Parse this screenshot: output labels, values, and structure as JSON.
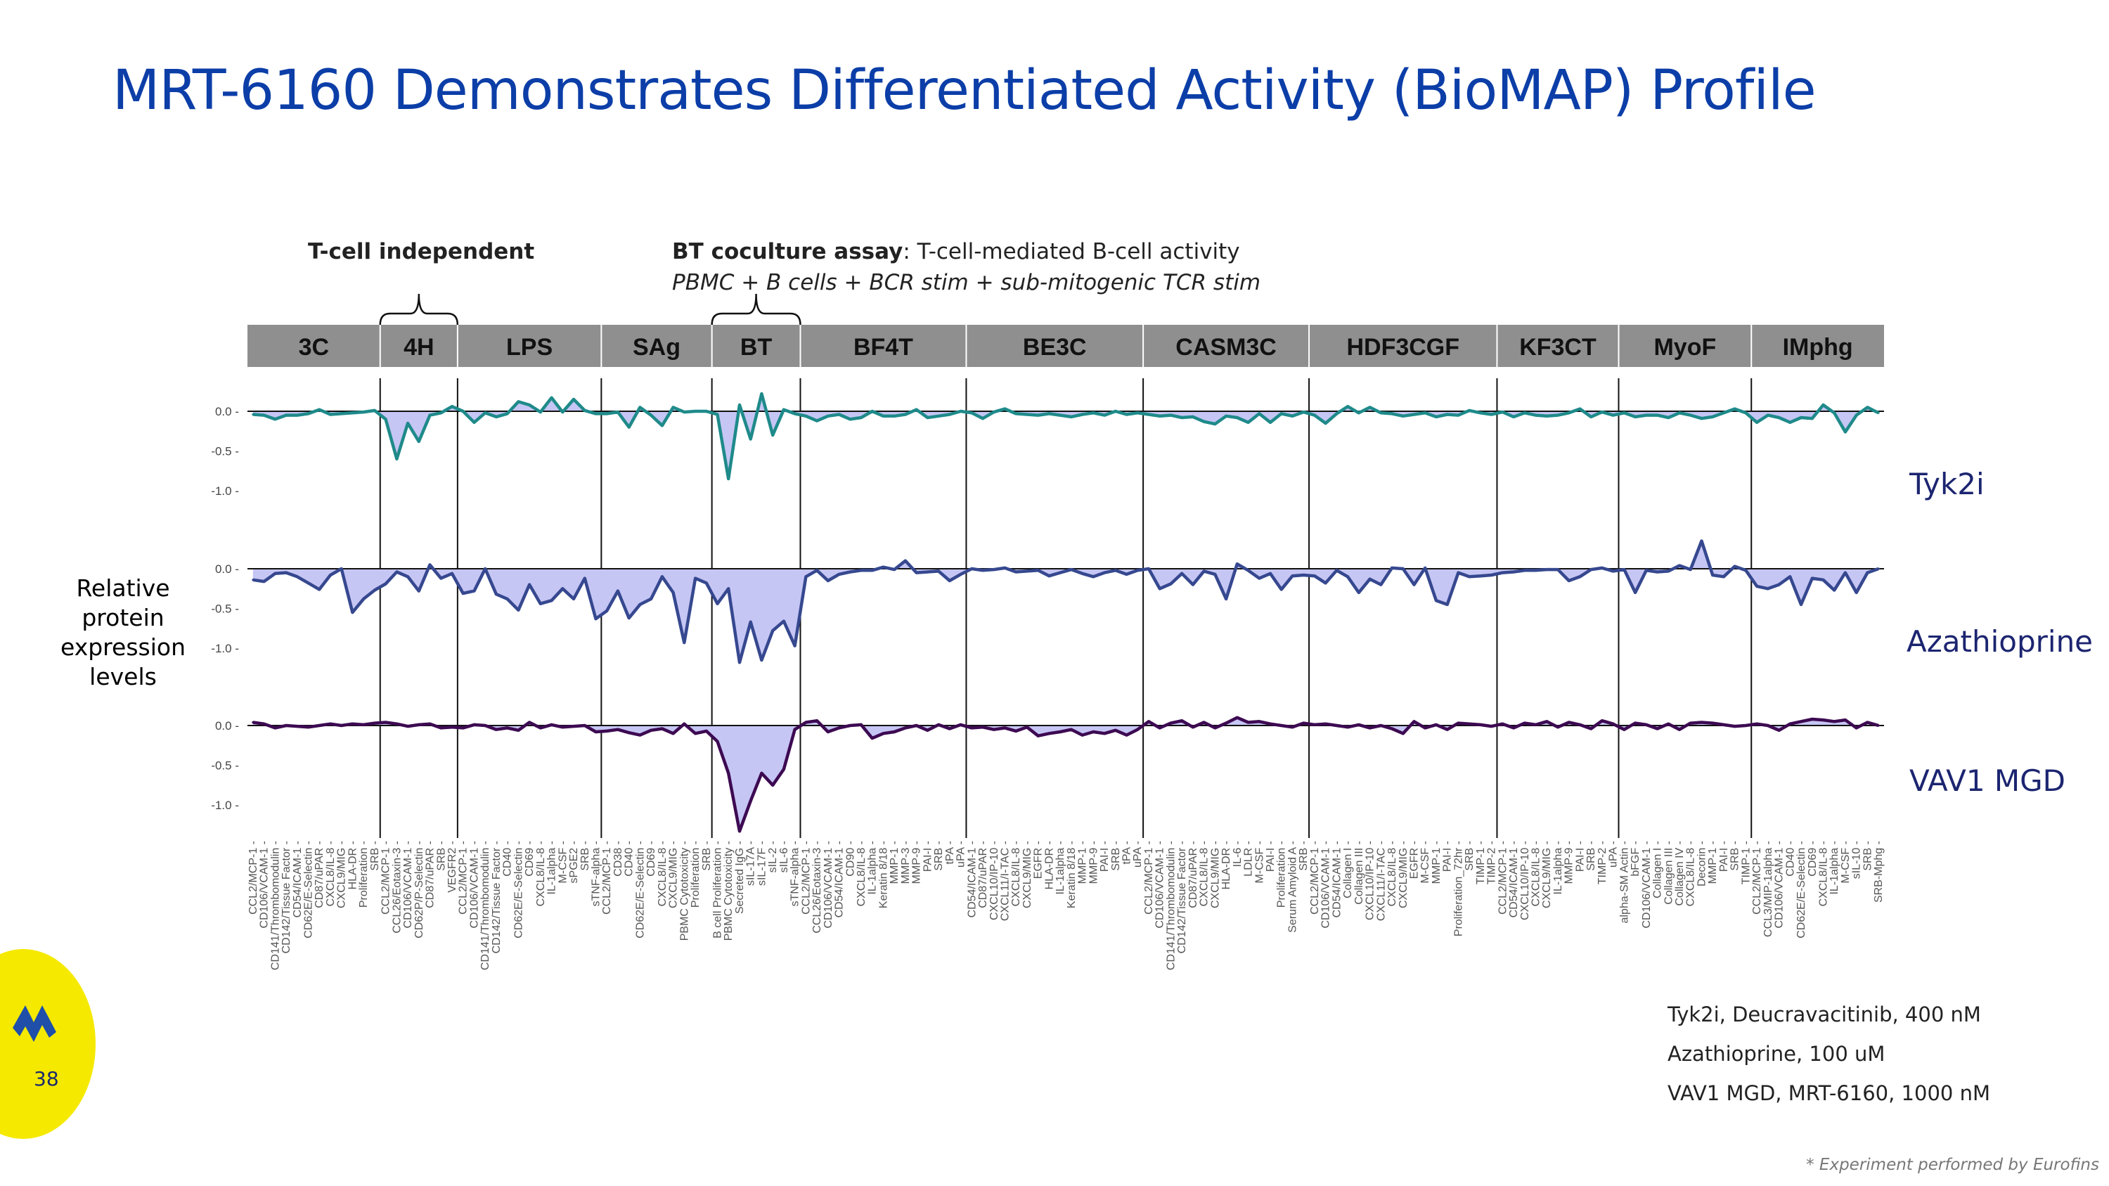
{
  "slide": {
    "title": "MRT-6160 Demonstrates Differentiated Activity (BioMAP) Profile",
    "page_number": "38",
    "footnote": "* Experiment performed by Eurofins",
    "accent_color": "#0c3ea8"
  },
  "annotations": {
    "tcell_independent": "T-cell independent",
    "bt_assay_bold": "BT coculture assay",
    "bt_assay_rest": ": T-cell-mediated B-cell activity",
    "bt_assay_sub": "PBMC + B cells + BCR stim + sub-mitogenic TCR stim"
  },
  "y_axis_label": [
    "Relative",
    "protein",
    "expression",
    "levels"
  ],
  "legend": [
    "Tyk2i, Deucravacitinib, 400 nM",
    "Azathioprine, 100 uM",
    "VAV1 MGD, MRT-6160, 1000 nM"
  ],
  "chart_data": {
    "type": "line",
    "title": "BioMAP profile",
    "ylabel": "Relative protein expression levels",
    "ylim": [
      -1.2,
      0.3
    ],
    "yticks": [
      0.0,
      -0.5,
      -1.0
    ],
    "ytick_labels": [
      "0.0",
      "-0.5",
      "-1.0"
    ],
    "panels": [
      {
        "name": "3C",
        "categories": [
          "CCL2/MCP-1",
          "CD106/VCAM-1",
          "CD141/Thrombomodulin",
          "CD142/Tissue Factor",
          "CD54/ICAM-1",
          "CD62E/E-Selectin",
          "CD87/uPAR",
          "CXCL8/IL-8",
          "CXCL9/MIG",
          "HLA-DR",
          "Proliferation",
          "SRB"
        ]
      },
      {
        "name": "4H",
        "categories": [
          "CCL2/MCP-1",
          "CCL26/Eotaxin-3",
          "CD106/VCAM-1",
          "CD62P/P-Selectin",
          "CD87/uPAR",
          "SRB",
          "VEGFR2"
        ]
      },
      {
        "name": "LPS",
        "categories": [
          "CCL2/MCP-1",
          "CD106/VCAM-1",
          "CD141/Thrombomodulin",
          "CD142/Tissue Factor",
          "CD40",
          "CD62E/E-Selectin",
          "CD69",
          "CXCL8/IL-8",
          "IL-1alpha",
          "M-CSF",
          "sPGE2",
          "SRB",
          "sTNF-alpha"
        ]
      },
      {
        "name": "SAg",
        "categories": [
          "CCL2/MCP-1",
          "CD38",
          "CD40",
          "CD62E/E-Selectin",
          "CD69",
          "CXCL8/IL-8",
          "CXCL9/MIG",
          "PBMC Cytotoxicity",
          "Proliferation",
          "SRB"
        ]
      },
      {
        "name": "BT",
        "categories": [
          "B cell Proliferation",
          "PBMC Cytotoxicity",
          "Secreted IgG",
          "sIL-17A",
          "sIL-17F",
          "sIL-2",
          "sIL-6",
          "sTNF-alpha"
        ]
      },
      {
        "name": "BF4T",
        "categories": [
          "CCL2/MCP-1",
          "CCL26/Eotaxin-3",
          "CD106/VCAM-1",
          "CD54/ICAM-1",
          "CD90",
          "CXCL8/IL-8",
          "IL-1alpha",
          "Keratin 8/18",
          "MMP-1",
          "MMP-3",
          "MMP-9",
          "PAI-I",
          "SRB",
          "tPA",
          "uPA"
        ]
      },
      {
        "name": "BE3C",
        "categories": [
          "CD54/ICAM-1",
          "CD87/uPAR",
          "CXCL10/IP-10",
          "CXCL11/I-TAC",
          "CXCL8/IL-8",
          "CXCL9/MIG",
          "EGFR",
          "HLA-DR",
          "IL-1alpha",
          "Keratin 8/18",
          "MMP-1",
          "MMP-9",
          "PAI-I",
          "SRB",
          "tPA",
          "uPA"
        ]
      },
      {
        "name": "CASM3C",
        "categories": [
          "CCL2/MCP-1",
          "CD106/VCAM-1",
          "CD141/Thrombomodulin",
          "CD142/Tissue Factor",
          "CD87/uPAR",
          "CXCL8/IL-8",
          "CXCL9/MIG",
          "HLA-DR",
          "IL-6",
          "LDLR",
          "M-CSF",
          "PAI-I",
          "Proliferation",
          "Serum Amyloid A",
          "SRB"
        ]
      },
      {
        "name": "HDF3CGF",
        "categories": [
          "CCL2/MCP-1",
          "CD106/VCAM-1",
          "CD54/ICAM-1",
          "Collagen I",
          "Collagen III",
          "CXCL10/IP-10",
          "CXCL11/I-TAC",
          "CXCL8/IL-8",
          "CXCL9/MIG",
          "EGFR",
          "M-CSF",
          "MMP-1",
          "PAI-I",
          "Proliferation_72hr",
          "SRB",
          "TIMP-1",
          "TIMP-2"
        ]
      },
      {
        "name": "KF3CT",
        "categories": [
          "CCL2/MCP-1",
          "CD54/ICAM-1",
          "CXCL10/IP-10",
          "CXCL8/IL-8",
          "CXCL9/MIG",
          "IL-1alpha",
          "MMP-9",
          "PAI-I",
          "SRB",
          "TIMP-2",
          "uPA"
        ]
      },
      {
        "name": "MyoF",
        "categories": [
          "alpha-SM Actin",
          "bFGF",
          "CD106/VCAM-1",
          "Collagen I",
          "Collagen III",
          "Collagen IV",
          "CXCL8/IL-8",
          "Decorin",
          "MMP-1",
          "PAI-I",
          "SRB",
          "TIMP-1"
        ]
      },
      {
        "name": "IMphg",
        "categories": [
          "CCL2/MCP-1",
          "CCL3/MIP-1alpha",
          "CD106/VCAM-1",
          "CD40",
          "CD62E/E-Selectin",
          "CD69",
          "CXCL8/IL-8",
          "IL-1alpha",
          "M-CSF",
          "sIL-10",
          "SRB",
          "SRB-Mphg"
        ]
      }
    ],
    "series": [
      {
        "name": "Tyk2i",
        "color": "#1f8a8a",
        "values": [
          -0.04,
          -0.05,
          -0.1,
          -0.05,
          -0.05,
          -0.03,
          0.02,
          -0.04,
          -0.03,
          -0.02,
          -0.01,
          0.01,
          -0.1,
          -0.6,
          -0.15,
          -0.38,
          -0.05,
          -0.02,
          0.06,
          0.0,
          -0.14,
          -0.02,
          -0.07,
          -0.03,
          0.12,
          0.08,
          -0.01,
          0.17,
          -0.01,
          0.15,
          0.01,
          -0.03,
          -0.03,
          -0.01,
          -0.2,
          0.05,
          -0.05,
          -0.18,
          0.05,
          -0.01,
          0.0,
          0.0,
          -0.04,
          -0.85,
          0.08,
          -0.35,
          0.22,
          -0.3,
          0.02,
          -0.03,
          -0.06,
          -0.12,
          -0.06,
          -0.04,
          -0.1,
          -0.08,
          0.0,
          -0.06,
          -0.06,
          -0.04,
          0.02,
          -0.08,
          -0.06,
          -0.04,
          0.0,
          -0.02,
          -0.09,
          -0.01,
          0.03,
          -0.03,
          -0.04,
          -0.05,
          -0.03,
          -0.05,
          -0.07,
          -0.04,
          -0.02,
          -0.05,
          0.0,
          -0.04,
          -0.02,
          -0.04,
          -0.06,
          -0.05,
          -0.08,
          -0.07,
          -0.13,
          -0.16,
          -0.06,
          -0.08,
          -0.14,
          -0.03,
          -0.14,
          -0.03,
          -0.06,
          -0.01,
          -0.05,
          -0.15,
          -0.03,
          0.06,
          -0.02,
          0.05,
          -0.02,
          -0.03,
          -0.06,
          -0.04,
          -0.02,
          -0.07,
          -0.04,
          -0.05,
          0.01,
          -0.02,
          -0.04,
          -0.01,
          -0.07,
          -0.02,
          -0.05,
          -0.06,
          -0.05,
          -0.02,
          0.03,
          -0.07,
          -0.01,
          -0.05,
          -0.02,
          -0.07,
          -0.05,
          -0.05,
          -0.08,
          -0.02,
          -0.05,
          -0.09,
          -0.07,
          -0.02,
          0.03,
          -0.02,
          -0.14,
          -0.05,
          -0.08,
          -0.14,
          -0.08,
          -0.09,
          0.08,
          -0.02,
          -0.26,
          -0.05,
          0.05,
          -0.02
        ]
      },
      {
        "name": "Azathioprine",
        "color": "#36488f",
        "values": [
          -0.14,
          -0.16,
          -0.06,
          -0.05,
          -0.1,
          -0.18,
          -0.26,
          -0.08,
          0.0,
          -0.55,
          -0.38,
          -0.27,
          -0.19,
          -0.04,
          -0.1,
          -0.28,
          0.05,
          -0.12,
          -0.06,
          -0.31,
          -0.28,
          0.0,
          -0.32,
          -0.38,
          -0.52,
          -0.2,
          -0.44,
          -0.4,
          -0.25,
          -0.38,
          -0.12,
          -0.63,
          -0.53,
          -0.28,
          -0.62,
          -0.45,
          -0.38,
          -0.1,
          -0.3,
          -0.93,
          -0.12,
          -0.18,
          -0.44,
          -0.25,
          -1.18,
          -0.67,
          -1.15,
          -0.78,
          -0.66,
          -0.97,
          -0.1,
          -0.02,
          -0.15,
          -0.07,
          -0.04,
          -0.02,
          -0.02,
          0.02,
          -0.01,
          0.1,
          -0.05,
          -0.04,
          -0.03,
          -0.15,
          -0.07,
          0.0,
          -0.02,
          -0.01,
          0.01,
          -0.04,
          -0.03,
          -0.02,
          -0.09,
          -0.05,
          -0.01,
          -0.06,
          -0.1,
          -0.05,
          -0.02,
          -0.07,
          -0.02,
          0.0,
          -0.25,
          -0.19,
          -0.06,
          -0.2,
          -0.03,
          -0.07,
          -0.38,
          0.06,
          -0.02,
          -0.12,
          -0.06,
          -0.26,
          -0.09,
          -0.08,
          -0.09,
          -0.18,
          -0.02,
          -0.1,
          -0.3,
          -0.13,
          -0.2,
          0.01,
          0.0,
          -0.2,
          0.01,
          -0.4,
          -0.45,
          -0.05,
          -0.1,
          -0.09,
          -0.08,
          -0.05,
          -0.04,
          -0.02,
          -0.02,
          -0.01,
          -0.01,
          -0.15,
          -0.1,
          -0.01,
          0.01,
          -0.03,
          -0.01,
          -0.3,
          -0.02,
          -0.04,
          -0.03,
          0.04,
          -0.01,
          0.35,
          -0.08,
          -0.1,
          0.03,
          -0.02,
          -0.22,
          -0.25,
          -0.2,
          -0.1,
          -0.45,
          -0.12,
          -0.14,
          -0.27,
          -0.05,
          -0.3,
          -0.05,
          0.0
        ]
      },
      {
        "name": "VAV1 MGD",
        "color": "#3d0a52",
        "values": [
          0.04,
          0.02,
          -0.03,
          0.0,
          -0.01,
          -0.02,
          0.0,
          0.02,
          0.0,
          0.02,
          0.01,
          0.03,
          0.04,
          0.02,
          -0.01,
          0.01,
          0.02,
          -0.03,
          -0.02,
          -0.03,
          0.01,
          0.0,
          -0.05,
          -0.03,
          -0.06,
          0.04,
          -0.03,
          0.01,
          -0.02,
          -0.01,
          0.0,
          -0.08,
          -0.07,
          -0.05,
          -0.09,
          -0.12,
          -0.06,
          -0.04,
          -0.1,
          0.02,
          -0.1,
          -0.07,
          -0.2,
          -0.6,
          -1.33,
          -0.95,
          -0.6,
          -0.75,
          -0.55,
          -0.05,
          0.04,
          0.06,
          -0.08,
          -0.03,
          0.0,
          0.01,
          -0.16,
          -0.1,
          -0.08,
          -0.03,
          0.0,
          -0.06,
          0.01,
          -0.04,
          0.01,
          -0.03,
          -0.02,
          -0.05,
          -0.03,
          -0.07,
          -0.02,
          -0.13,
          -0.1,
          -0.08,
          -0.05,
          -0.12,
          -0.08,
          -0.1,
          -0.06,
          -0.12,
          -0.05,
          0.05,
          -0.03,
          0.03,
          0.06,
          -0.02,
          0.04,
          -0.03,
          0.03,
          0.1,
          0.04,
          0.05,
          0.02,
          0.0,
          -0.02,
          0.03,
          0.01,
          0.02,
          0.0,
          -0.02,
          0.01,
          -0.03,
          0.0,
          -0.04,
          -0.1,
          0.05,
          -0.03,
          0.01,
          -0.05,
          0.03,
          0.02,
          0.01,
          -0.01,
          0.02,
          -0.03,
          0.03,
          0.01,
          0.05,
          -0.02,
          0.04,
          0.01,
          -0.04,
          0.06,
          0.02,
          -0.05,
          0.03,
          0.01,
          -0.04,
          0.02,
          -0.05,
          0.03,
          0.04,
          0.03,
          0.01,
          -0.01,
          0.0,
          0.02,
          0.0,
          -0.06,
          0.02,
          0.05,
          0.08,
          0.07,
          0.05,
          0.07,
          -0.03,
          0.04,
          0.0
        ]
      }
    ]
  }
}
